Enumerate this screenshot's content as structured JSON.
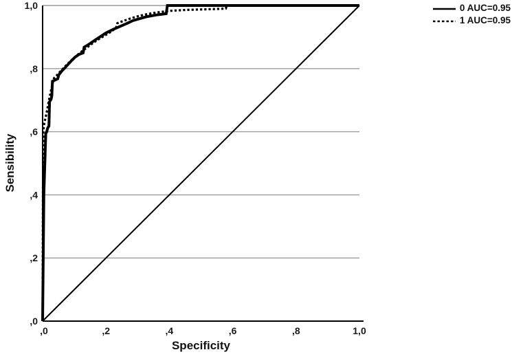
{
  "figure": {
    "background_color": "#ffffff",
    "text_color": "#111111"
  },
  "chart_data": {
    "type": "line",
    "subtype": "roc-curve",
    "title": "",
    "xlabel": "Specificity",
    "ylabel": "Sensibility",
    "xlim": [
      0,
      1
    ],
    "ylim": [
      0,
      1
    ],
    "x_ticks": [
      0,
      0.2,
      0.4,
      0.6,
      0.8,
      1.0
    ],
    "x_tick_labels": [
      ",0",
      ",2",
      ",4",
      ",6",
      ",8",
      "1,0"
    ],
    "y_ticks": [
      0,
      0.2,
      0.4,
      0.6,
      0.8,
      1.0
    ],
    "y_tick_labels": [
      ",0",
      ",2",
      ",4",
      ",6",
      ",8",
      "1,0"
    ],
    "grid": {
      "horizontal_at": [
        0.2,
        0.4,
        0.6,
        0.8,
        1.0
      ],
      "vertical": false,
      "color": "#9c9c9c"
    },
    "axis_color": "#000000",
    "legend": {
      "position": "top-right-outside",
      "entries": [
        {
          "label": "0 AUC=0.95",
          "style": "solid",
          "color": "#000000"
        },
        {
          "label": "1 AUC=0.95",
          "style": "dashed",
          "color": "#000000"
        }
      ]
    },
    "reference_line": {
      "style": "solid",
      "color": "#000000",
      "points": [
        [
          0,
          0
        ],
        [
          1,
          1
        ]
      ]
    },
    "series": [
      {
        "name": "0",
        "auc": 0.95,
        "style": "solid",
        "color": "#000000",
        "points": [
          [
            0,
            0
          ],
          [
            0.004,
            0.4
          ],
          [
            0.01,
            0.595
          ],
          [
            0.013,
            0.6
          ],
          [
            0.016,
            0.612
          ],
          [
            0.02,
            0.618
          ],
          [
            0.022,
            0.695
          ],
          [
            0.027,
            0.703
          ],
          [
            0.029,
            0.714
          ],
          [
            0.031,
            0.76
          ],
          [
            0.048,
            0.768
          ],
          [
            0.051,
            0.78
          ],
          [
            0.06,
            0.792
          ],
          [
            0.07,
            0.802
          ],
          [
            0.08,
            0.813
          ],
          [
            0.091,
            0.825
          ],
          [
            0.102,
            0.836
          ],
          [
            0.115,
            0.845
          ],
          [
            0.128,
            0.85
          ],
          [
            0.131,
            0.868
          ],
          [
            0.146,
            0.877
          ],
          [
            0.162,
            0.888
          ],
          [
            0.18,
            0.9
          ],
          [
            0.2,
            0.913
          ],
          [
            0.222,
            0.924
          ],
          [
            0.245,
            0.934
          ],
          [
            0.268,
            0.944
          ],
          [
            0.285,
            0.952
          ],
          [
            0.305,
            0.958
          ],
          [
            0.33,
            0.965
          ],
          [
            0.358,
            0.97
          ],
          [
            0.39,
            0.974
          ],
          [
            0.394,
            1.0
          ],
          [
            1.0,
            1.0
          ]
        ]
      },
      {
        "name": "1",
        "auc": 0.95,
        "style": "dashed",
        "color": "#000000",
        "points": [
          [
            0,
            0
          ],
          [
            0.001,
            0.42
          ],
          [
            0.002,
            0.6
          ],
          [
            0.005,
            0.625
          ],
          [
            0.01,
            0.648
          ],
          [
            0.015,
            0.672
          ],
          [
            0.02,
            0.7
          ],
          [
            0.026,
            0.728
          ],
          [
            0.031,
            0.752
          ],
          [
            0.036,
            0.77
          ],
          [
            0.046,
            0.78
          ],
          [
            0.058,
            0.793
          ],
          [
            0.07,
            0.806
          ],
          [
            0.084,
            0.82
          ],
          [
            0.098,
            0.833
          ],
          [
            0.113,
            0.846
          ],
          [
            0.128,
            0.858
          ],
          [
            0.144,
            0.87
          ],
          [
            0.16,
            0.882
          ],
          [
            0.178,
            0.894
          ],
          [
            0.198,
            0.906
          ],
          [
            0.218,
            0.918
          ],
          [
            0.232,
            0.93
          ],
          [
            0.236,
            0.944
          ],
          [
            0.258,
            0.952
          ],
          [
            0.28,
            0.96
          ],
          [
            0.305,
            0.967
          ],
          [
            0.332,
            0.973
          ],
          [
            0.36,
            0.978
          ],
          [
            0.4,
            0.983
          ],
          [
            0.455,
            0.986
          ],
          [
            0.52,
            0.988
          ],
          [
            0.578,
            0.99
          ],
          [
            0.582,
            1.0
          ],
          [
            1.0,
            1.0
          ]
        ]
      }
    ]
  }
}
